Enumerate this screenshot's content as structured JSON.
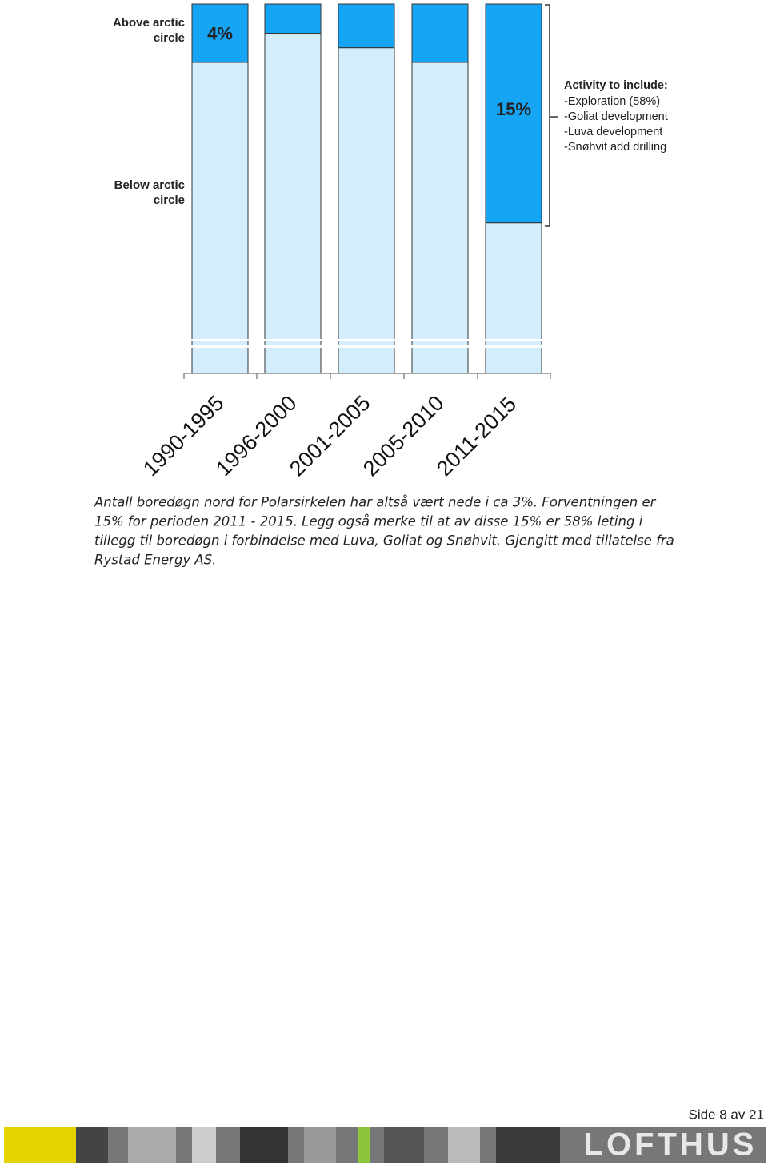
{
  "chart_data": {
    "type": "stacked-bar",
    "categories": [
      "1990-1995",
      "1996-2000",
      "2001-2005",
      "2005-2010",
      "2011-2015"
    ],
    "series": [
      {
        "name": "Above arctic circle",
        "color": "#16a4f5",
        "values": [
          4,
          2,
          3,
          4,
          15
        ],
        "value_labels": [
          "4%",
          null,
          null,
          null,
          "15%"
        ]
      },
      {
        "name": "Below arctic circle",
        "color": "#d3edfc",
        "values": [
          96,
          98,
          97,
          96,
          85
        ]
      }
    ],
    "annotation": {
      "title": "Activity to include:",
      "lines": [
        "-Exploration (58%)",
        "-Goliat development",
        "-Luva development",
        "-Snøhvit add drilling"
      ]
    }
  },
  "caption": [
    "Antall boredøgn nord for Polarsirkelen har altså vært nede i ca 3%. Forventningen er",
    "15% for perioden 2011 - 2015. Legg også merke til at av disse 15% er 58% leting i",
    "tillegg til boredøgn i forbindelse med Luva, Goliat og Snøhvit. Gjengitt med tillatelse fra",
    "Rystad Energy AS."
  ],
  "footer": {
    "page": "Side 8 av 21",
    "logo": "LOFTHUS"
  }
}
